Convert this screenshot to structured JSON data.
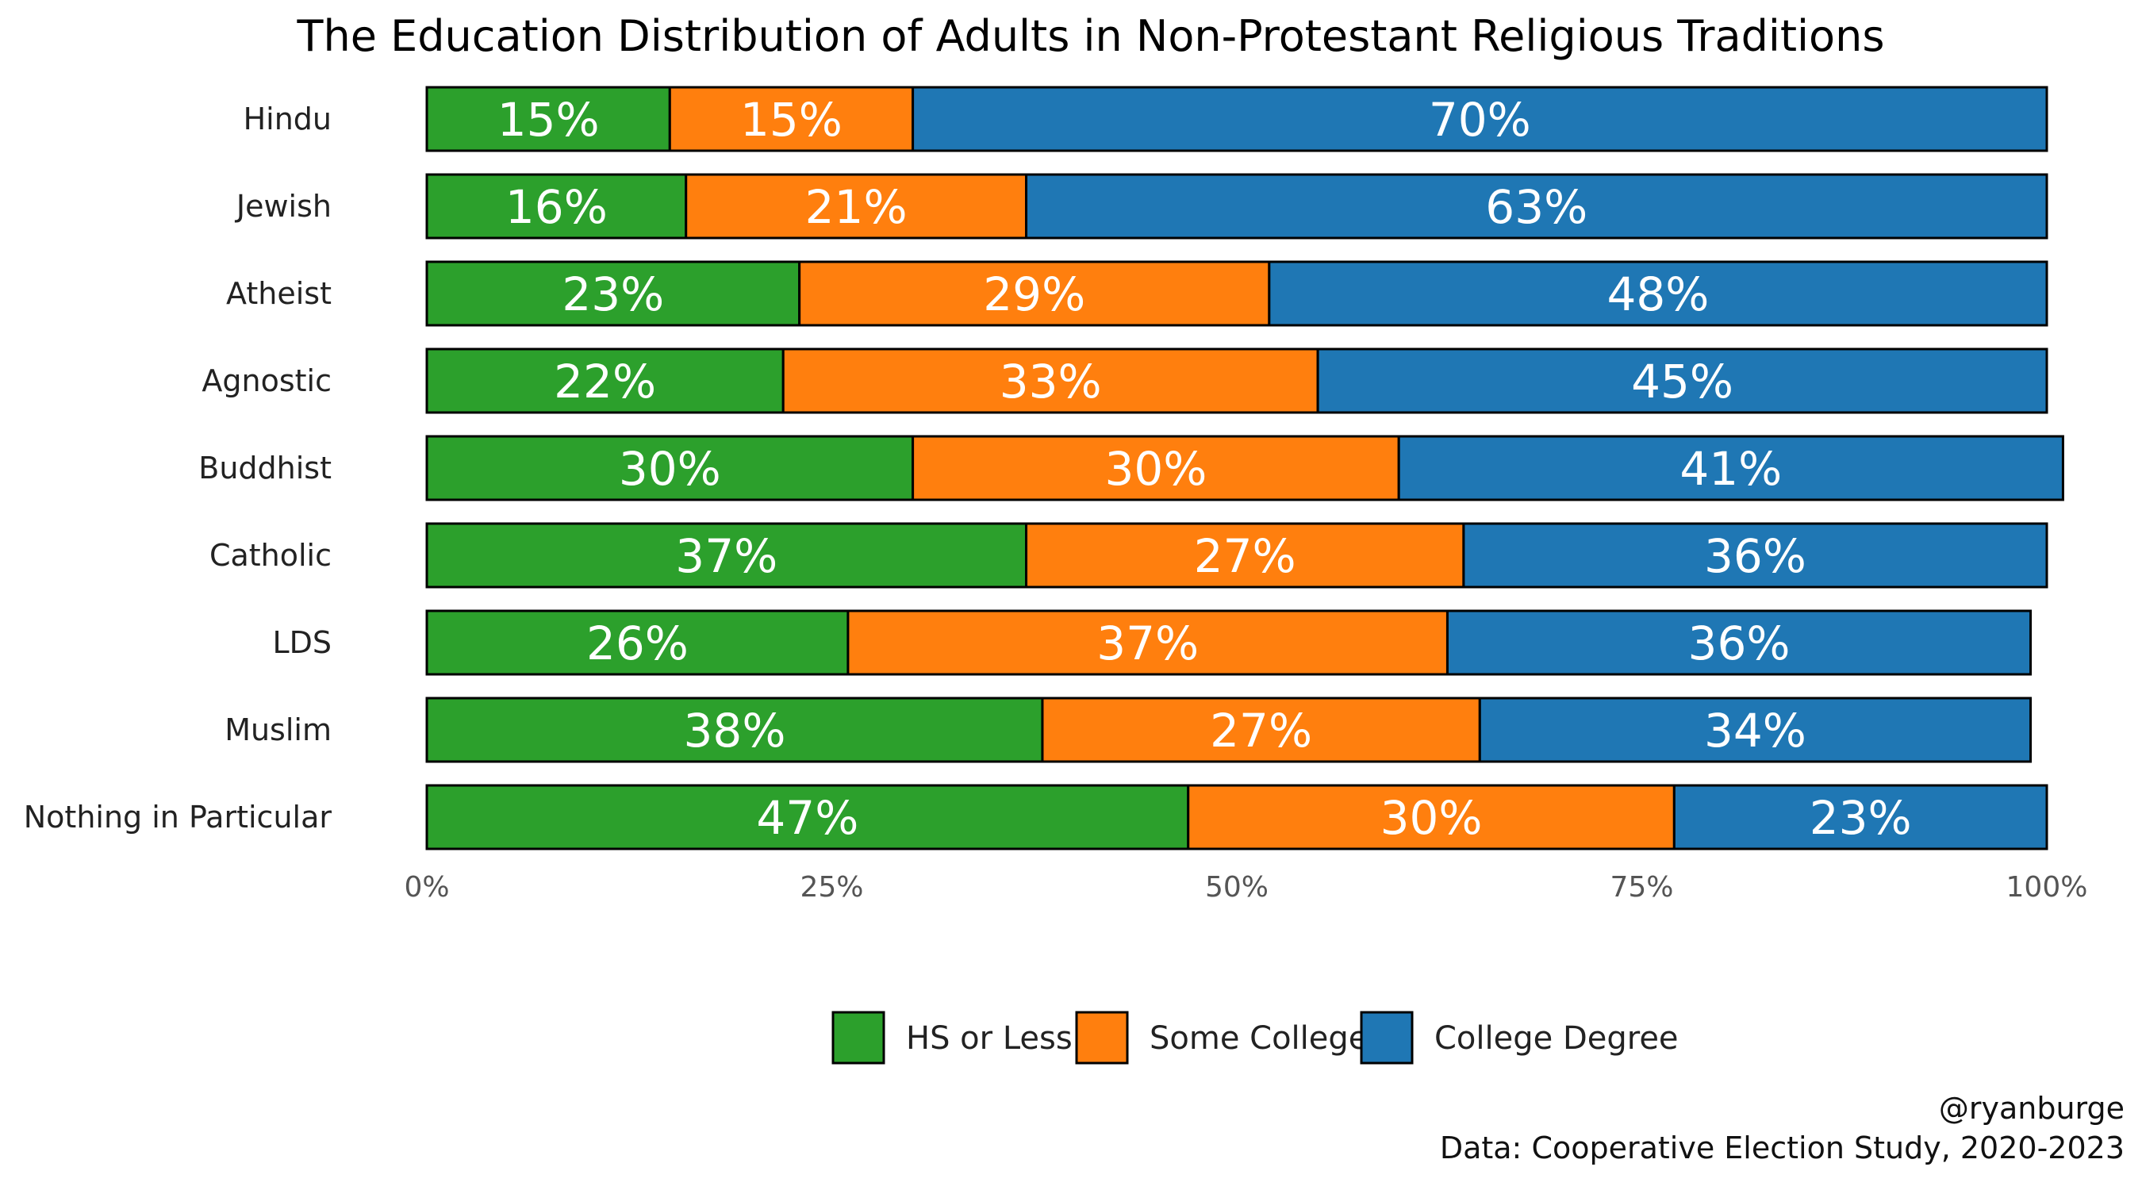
{
  "chart_data": {
    "type": "bar",
    "orientation": "horizontal",
    "stacked": true,
    "title": "The Education Distribution of Adults in Non-Protestant Religious Traditions",
    "categories": [
      "Hindu",
      "Jewish",
      "Atheist",
      "Agnostic",
      "Buddhist",
      "Catholic",
      "LDS",
      "Muslim",
      "Nothing in Particular"
    ],
    "series": [
      {
        "name": "HS or Less",
        "color": "#2ca02c",
        "values": [
          15,
          16,
          23,
          22,
          30,
          37,
          26,
          38,
          47
        ]
      },
      {
        "name": "Some College",
        "color": "#ff7f0e",
        "values": [
          15,
          21,
          29,
          33,
          30,
          27,
          37,
          27,
          30
        ]
      },
      {
        "name": "College Degree",
        "color": "#1f77b4",
        "values": [
          70,
          63,
          48,
          45,
          41,
          36,
          36,
          34,
          23
        ]
      }
    ],
    "value_labels": [
      [
        "15%",
        "15%",
        "70%"
      ],
      [
        "16%",
        "21%",
        "63%"
      ],
      [
        "23%",
        "29%",
        "48%"
      ],
      [
        "22%",
        "33%",
        "45%"
      ],
      [
        "30%",
        "30%",
        "41%"
      ],
      [
        "37%",
        "27%",
        "36%"
      ],
      [
        "26%",
        "37%",
        "36%"
      ],
      [
        "38%",
        "27%",
        "34%"
      ],
      [
        "47%",
        "30%",
        "23%"
      ]
    ],
    "xlim": [
      0,
      100
    ],
    "xticks": [
      0,
      25,
      50,
      75,
      100
    ],
    "xtick_labels": [
      "0%",
      "25%",
      "50%",
      "75%",
      "100%"
    ],
    "grid": false,
    "legend_position": "bottom"
  },
  "caption": {
    "author": "@ryanburge",
    "source": "Data: Cooperative Election Study, 2020-2023"
  }
}
